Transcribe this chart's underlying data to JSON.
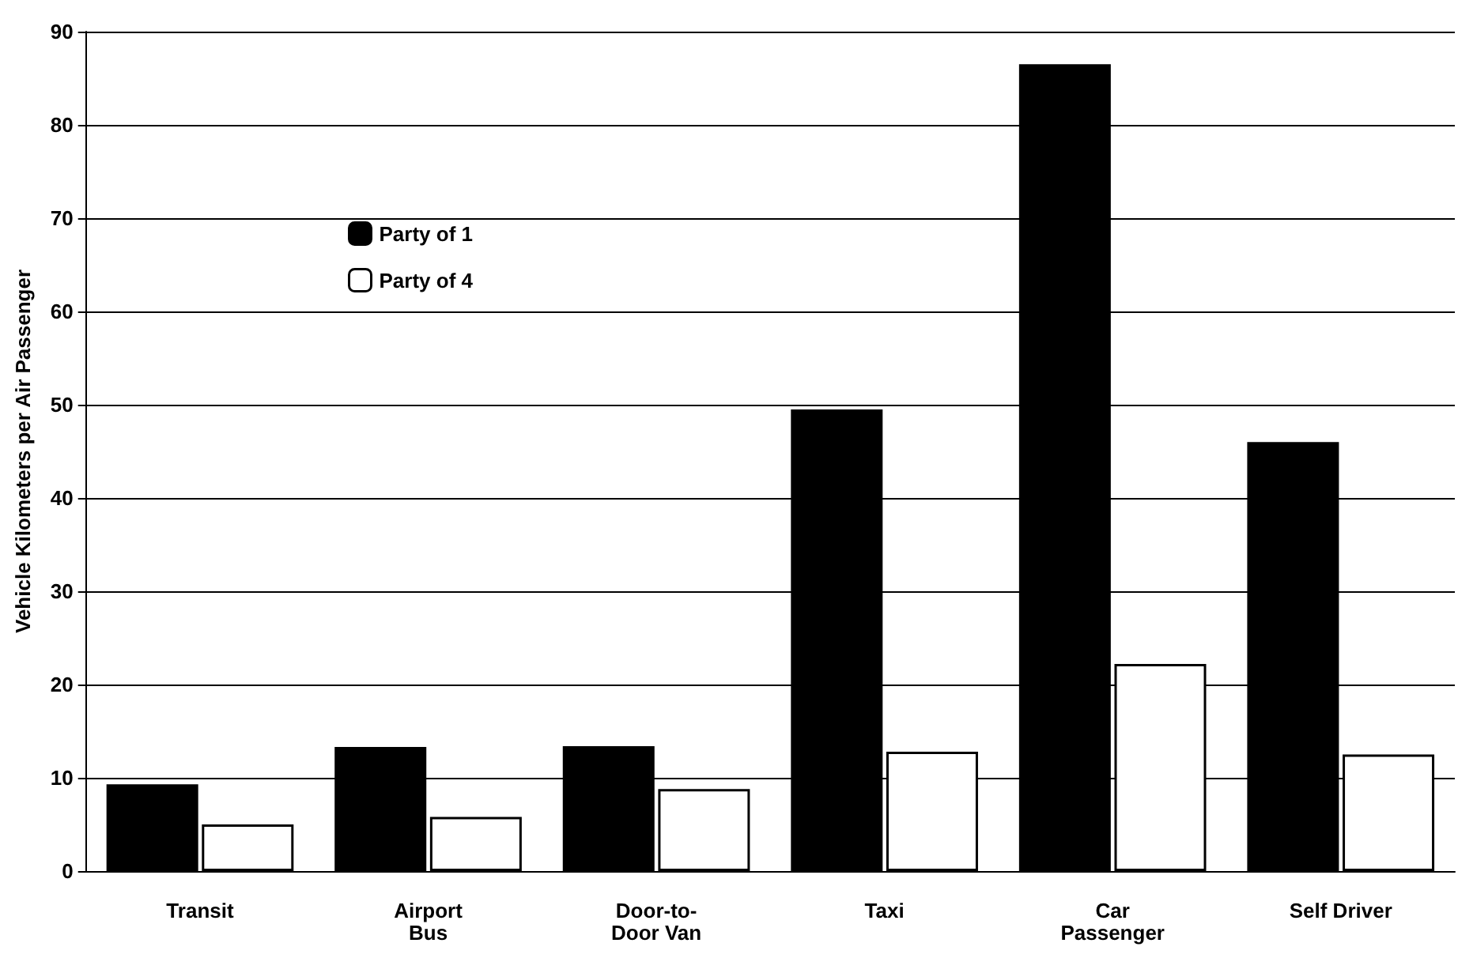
{
  "chart_data": {
    "type": "bar",
    "ylabel": "Vehicle Kilometers per Air Passenger",
    "categories": [
      "Transit",
      "Airport\nBus",
      "Door-to-\nDoor Van",
      "Taxi",
      "Car\nPassenger",
      "Self Driver"
    ],
    "series": [
      {
        "name": "Party of 1",
        "color": "#000000",
        "values": [
          9.3,
          13.3,
          13.4,
          49.5,
          86.5,
          46
        ]
      },
      {
        "name": "Party of 4",
        "color": "#ffffff",
        "values": [
          5,
          5.8,
          8.8,
          12.8,
          22.2,
          12.5
        ]
      }
    ],
    "ylim": [
      0,
      90
    ],
    "yticks": [
      0,
      10,
      20,
      30,
      40,
      50,
      60,
      70,
      80,
      90
    ],
    "grid": "y",
    "legend": "top left"
  }
}
